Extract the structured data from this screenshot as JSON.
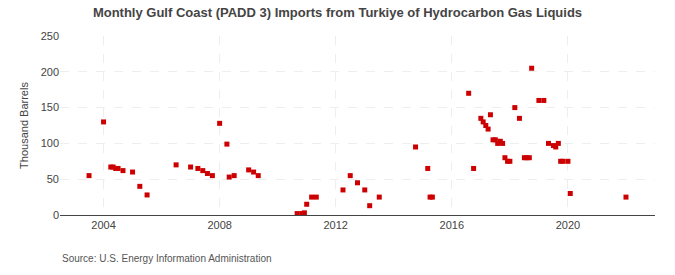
{
  "chart_data": {
    "type": "scatter",
    "title": "Monthly Gulf Coast (PADD 3) Imports from Turkiye of Hydrocarbon Gas Liquids",
    "ylabel": "Thousand Barrels",
    "annotations": [
      "Source: U.S. Energy Information Administration"
    ],
    "color": "#cc0000",
    "marker": "square",
    "grid": true,
    "xlim": [
      2002.5,
      2023.0
    ],
    "xticks": [
      2004,
      2008,
      2012,
      2016,
      2020
    ],
    "ylim": [
      0,
      250
    ],
    "yticks": [
      0,
      50,
      100,
      150,
      200,
      250
    ],
    "x": [
      2003.5,
      2004.0,
      2004.25,
      2004.33,
      2004.42,
      2004.5,
      2004.67,
      2005.0,
      2005.25,
      2005.5,
      2006.5,
      2007.0,
      2007.25,
      2007.42,
      2007.58,
      2007.75,
      2008.0,
      2008.25,
      2008.33,
      2008.5,
      2009.0,
      2009.17,
      2009.33,
      2010.67,
      2010.83,
      2010.92,
      2011.0,
      2011.17,
      2011.33,
      2012.25,
      2012.5,
      2012.75,
      2013.0,
      2013.17,
      2013.5,
      2014.75,
      2015.17,
      2015.25,
      2015.33,
      2016.58,
      2016.75,
      2017.0,
      2017.08,
      2017.17,
      2017.25,
      2017.33,
      2017.42,
      2017.5,
      2017.58,
      2017.67,
      2017.75,
      2017.83,
      2017.92,
      2018.0,
      2018.17,
      2018.33,
      2018.5,
      2018.58,
      2018.67,
      2018.75,
      2019.0,
      2019.17,
      2019.33,
      2019.5,
      2019.58,
      2019.67,
      2019.75,
      2019.83,
      2020.0,
      2020.08,
      2022.0
    ],
    "values": [
      55,
      130,
      67,
      67,
      65,
      65,
      62,
      60,
      40,
      28,
      70,
      67,
      65,
      62,
      58,
      55,
      128,
      99,
      53,
      55,
      63,
      60,
      55,
      2,
      2,
      3,
      15,
      25,
      25,
      35,
      55,
      45,
      35,
      13,
      25,
      95,
      65,
      25,
      25,
      170,
      65,
      135,
      130,
      125,
      120,
      140,
      105,
      105,
      100,
      103,
      100,
      80,
      75,
      75,
      150,
      135,
      80,
      80,
      80,
      205,
      160,
      160,
      100,
      97,
      95,
      100,
      75,
      75,
      75,
      30,
      25
    ]
  }
}
